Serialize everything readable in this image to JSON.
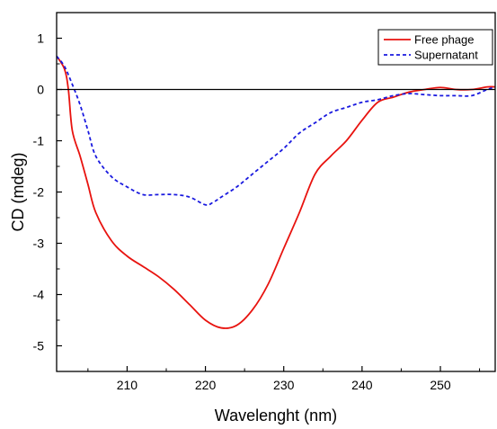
{
  "chart_data": {
    "type": "line",
    "title": "",
    "xlabel": "Wavelenght (nm)",
    "ylabel": "CD (mdeg)",
    "xlim": [
      201,
      257
    ],
    "ylim": [
      -5.5,
      1.5
    ],
    "x_ticks": [
      210,
      220,
      230,
      240,
      250
    ],
    "y_ticks": [
      1,
      0,
      -1,
      -2,
      -3,
      -4,
      -5
    ],
    "x_minor_step": 5,
    "y_minor_step": 0.5,
    "zero_line": true,
    "grid": false,
    "legend_position": "top-right",
    "series": [
      {
        "name": "Free phage",
        "color": "#e8130f",
        "style": "solid",
        "x": [
          201,
          202,
          202.5,
          203,
          204,
          205,
          206,
          208,
          210,
          212,
          214,
          216,
          218,
          220,
          222,
          224,
          226,
          228,
          230,
          232,
          234,
          236,
          238,
          240,
          242,
          244,
          246,
          248,
          250,
          252,
          254,
          256,
          257
        ],
        "y": [
          0.65,
          0.4,
          0,
          -0.8,
          -1.3,
          -1.85,
          -2.4,
          -2.95,
          -3.25,
          -3.45,
          -3.65,
          -3.9,
          -4.2,
          -4.5,
          -4.65,
          -4.6,
          -4.3,
          -3.8,
          -3.1,
          -2.4,
          -1.65,
          -1.3,
          -1.0,
          -0.6,
          -0.25,
          -0.15,
          -0.05,
          0.0,
          0.04,
          0.0,
          0.0,
          0.05,
          0.05
        ]
      },
      {
        "name": "Supernatant",
        "color": "#1a1adf",
        "style": "dashed",
        "x": [
          201,
          202,
          203,
          204,
          205,
          206,
          208,
          210,
          212,
          214,
          216,
          218,
          220,
          221,
          222,
          224,
          226,
          228,
          230,
          232,
          234,
          236,
          238,
          240,
          242,
          244,
          246,
          248,
          250,
          252,
          254,
          256,
          257
        ],
        "y": [
          0.65,
          0.45,
          0.1,
          -0.3,
          -0.8,
          -1.3,
          -1.7,
          -1.9,
          -2.05,
          -2.05,
          -2.05,
          -2.1,
          -2.25,
          -2.2,
          -2.1,
          -1.9,
          -1.65,
          -1.4,
          -1.15,
          -0.85,
          -0.65,
          -0.45,
          -0.35,
          -0.25,
          -0.2,
          -0.12,
          -0.08,
          -0.1,
          -0.12,
          -0.12,
          -0.12,
          0.0,
          0.05
        ]
      }
    ]
  }
}
